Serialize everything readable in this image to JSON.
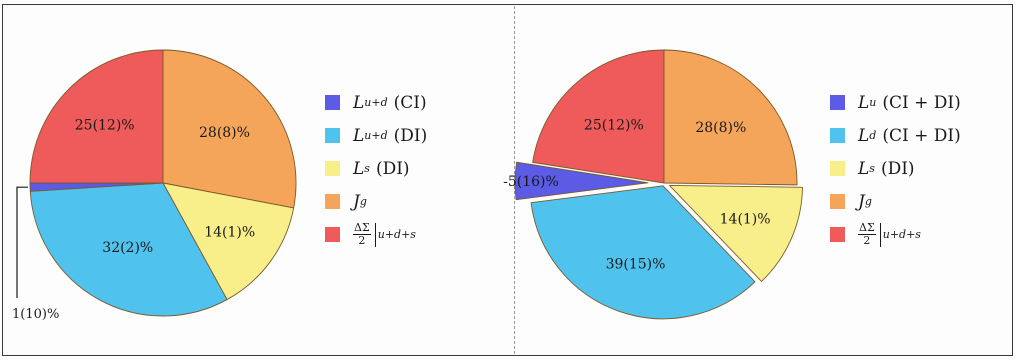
{
  "chart_data": [
    {
      "type": "pie",
      "slices": [
        {
          "label": "25(12)%",
          "value": 25,
          "color": "#ef5a5a",
          "explode": 0
        },
        {
          "label": "28(8)%",
          "value": 28,
          "color": "#f5a55a",
          "explode": 0
        },
        {
          "label": "14(1)%",
          "value": 14,
          "color": "#f8ef8a",
          "explode": 0
        },
        {
          "label": "32(2)%",
          "value": 32,
          "color": "#4fc3ee",
          "explode": 0
        },
        {
          "label": "1(10)%",
          "value": 1,
          "color": "#5b5be6",
          "explode": 0,
          "callout": true
        }
      ],
      "legend": [
        {
          "color": "#5b5be6",
          "main": "L",
          "sup": "u+d",
          "rest": "(CI)"
        },
        {
          "color": "#4fc3ee",
          "main": "L",
          "sup": "u+d",
          "rest": "(DI)"
        },
        {
          "color": "#f8ef8a",
          "main": "L",
          "sup": "s",
          "rest": "(DI)"
        },
        {
          "color": "#f5a55a",
          "main": "J",
          "sup": "g",
          "rest": ""
        },
        {
          "color": "#ef5a5a",
          "frac_num": "ΔΣ",
          "frac_den": "2",
          "tail": "u+d+s"
        }
      ]
    },
    {
      "type": "pie",
      "slices": [
        {
          "label": "25(12)%",
          "value": 25,
          "color": "#ef5a5a",
          "explode": 0
        },
        {
          "label": "28(8)%",
          "value": 28,
          "color": "#f5a55a",
          "explode": 0
        },
        {
          "label": "14(1)%",
          "value": 14,
          "color": "#f8ef8a",
          "explode": 6
        },
        {
          "label": "39(15)%",
          "value": 39,
          "color": "#4fc3ee",
          "explode": 3
        },
        {
          "label": "-5(16)%",
          "value": 5,
          "color": "#5b5be6",
          "explode": 16
        }
      ],
      "legend": [
        {
          "color": "#5b5be6",
          "main": "L",
          "sup": "u",
          "rest": "(CI + DI)"
        },
        {
          "color": "#4fc3ee",
          "main": "L",
          "sup": "d",
          "rest": "(CI + DI)"
        },
        {
          "color": "#f8ef8a",
          "main": "L",
          "sup": "s",
          "rest": "(DI)"
        },
        {
          "color": "#f5a55a",
          "main": "J",
          "sup": "g",
          "rest": ""
        },
        {
          "color": "#ef5a5a",
          "frac_num": "ΔΣ",
          "frac_den": "2",
          "tail": "u+d+s"
        }
      ]
    }
  ]
}
